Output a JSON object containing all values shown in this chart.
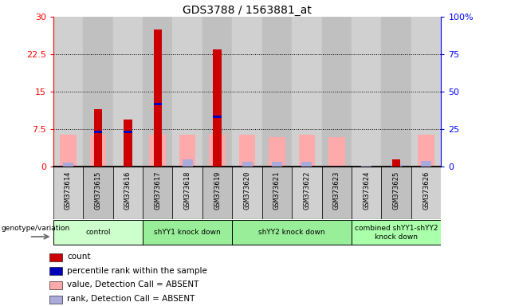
{
  "title": "GDS3788 / 1563881_at",
  "samples": [
    "GSM373614",
    "GSM373615",
    "GSM373616",
    "GSM373617",
    "GSM373618",
    "GSM373619",
    "GSM373620",
    "GSM373621",
    "GSM373622",
    "GSM373623",
    "GSM373624",
    "GSM373625",
    "GSM373626"
  ],
  "red_bars": [
    0,
    11.5,
    9.5,
    27.5,
    0,
    23.5,
    0,
    0,
    0,
    0,
    0,
    1.5,
    0
  ],
  "blue_bars": [
    0,
    7.0,
    7.0,
    12.5,
    0,
    10.0,
    0,
    0,
    0,
    0,
    0,
    0,
    0
  ],
  "pink_bars": [
    6.5,
    6.5,
    0,
    6.5,
    6.5,
    6.5,
    6.5,
    6.0,
    6.5,
    6.0,
    0,
    0,
    6.5
  ],
  "lavender_bars": [
    0.8,
    0,
    0,
    0,
    1.5,
    0,
    1.0,
    1.0,
    1.0,
    0,
    0.2,
    0.5,
    1.2
  ],
  "ylim_left": [
    0,
    30
  ],
  "ylim_right": [
    0,
    100
  ],
  "yticks_left": [
    0,
    7.5,
    15,
    22.5,
    30
  ],
  "yticks_right": [
    0,
    25,
    50,
    75,
    100
  ],
  "ytick_labels_left": [
    "0",
    "7.5",
    "15",
    "22.5",
    "30"
  ],
  "ytick_labels_right": [
    "0",
    "25",
    "50",
    "75",
    "100%"
  ],
  "group_boundaries": [
    {
      "label": "control",
      "start": 0,
      "end": 2,
      "color": "#ccffcc"
    },
    {
      "label": "shYY1 knock down",
      "start": 3,
      "end": 5,
      "color": "#99ee99"
    },
    {
      "label": "shYY2 knock down",
      "start": 6,
      "end": 9,
      "color": "#99ee99"
    },
    {
      "label": "combined shYY1-shYY2\nknock down",
      "start": 10,
      "end": 12,
      "color": "#aaffaa"
    }
  ],
  "legend_items": [
    {
      "label": "count",
      "color": "#cc0000"
    },
    {
      "label": "percentile rank within the sample",
      "color": "#0000bb"
    },
    {
      "label": "value, Detection Call = ABSENT",
      "color": "#ffaaaa"
    },
    {
      "label": "rank, Detection Call = ABSENT",
      "color": "#aaaadd"
    }
  ],
  "genotype_label": "genotype/variation",
  "col_colors": [
    "#d0d0d0",
    "#c0c0c0"
  ]
}
